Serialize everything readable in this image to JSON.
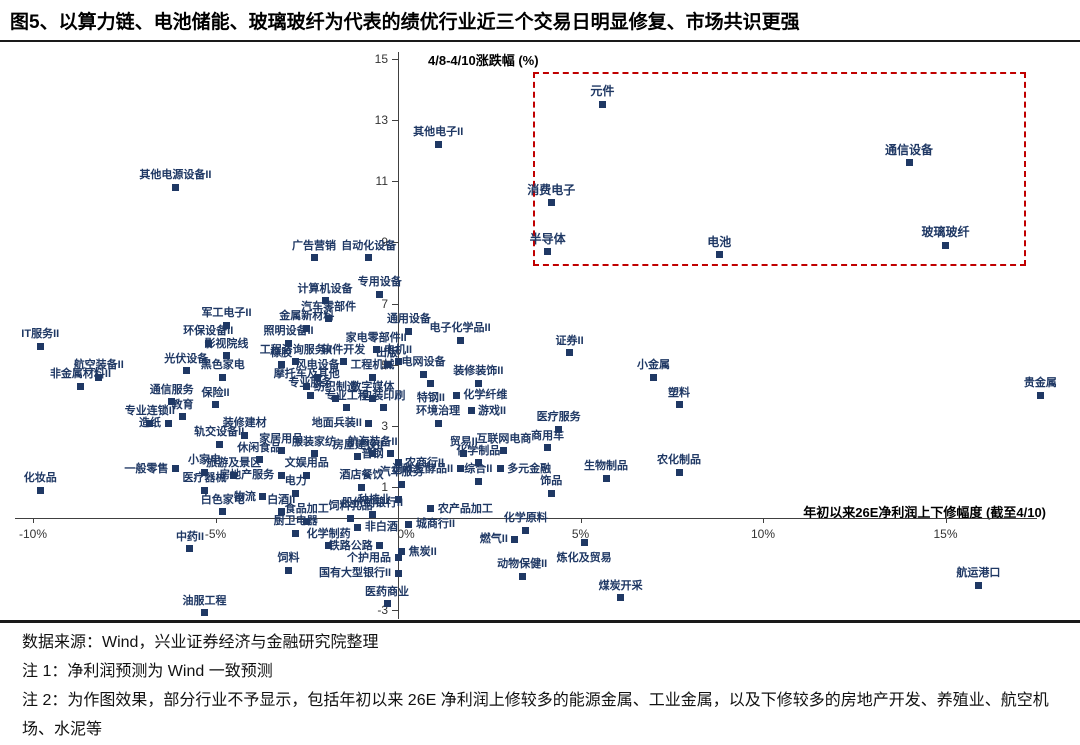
{
  "figure": {
    "title": "图5、以算力链、电池储能、玻璃玻纤为代表的绩优行业近三个交易日明显修复、市场共识更强",
    "source": "数据来源：Wind，兴业证券经济与金融研究院整理",
    "note1": "注 1：净利润预测为 Wind 一致预测",
    "note2": "注 2：为作图效果，部分行业不予显示，包括年初以来 26E 净利润上修较多的能源金属、工业金属，以及下修较多的房地产开发、养殖业、航空机场、水泥等"
  },
  "chart_data": {
    "type": "scatter",
    "title": "",
    "y_axis_title": "4/8-4/10涨跌幅 (%)",
    "x_axis_title": "年初以来26E净利润上下修幅度 (截至4/10)",
    "xlabel": "年初以来26E净利润上下修幅度(%)",
    "ylabel": "4/8-4/10涨跌幅(%)",
    "xlim": [
      -10.5,
      18.5
    ],
    "ylim": [
      -3.3,
      15.2
    ],
    "grid": false,
    "legend": "none",
    "x_ticks": [
      {
        "v": -10,
        "label": "-10%"
      },
      {
        "v": -5,
        "label": "-5%"
      },
      {
        "v": 0,
        "label": "0%"
      },
      {
        "v": 5,
        "label": "5%"
      },
      {
        "v": 10,
        "label": "10%"
      },
      {
        "v": 15,
        "label": "15%"
      }
    ],
    "y_ticks": [
      {
        "v": 15,
        "label": "15"
      },
      {
        "v": 13,
        "label": "13"
      },
      {
        "v": 11,
        "label": "11"
      },
      {
        "v": 9,
        "label": "9"
      },
      {
        "v": 7,
        "label": "7"
      },
      {
        "v": 5,
        "label": "5"
      },
      {
        "v": 3,
        "label": "3"
      },
      {
        "v": 1,
        "label": "1"
      },
      {
        "v": -3,
        "label": "-3"
      }
    ],
    "marker_color": "#1f3864",
    "label_color": "#1f3864",
    "highlight_box": {
      "color": "#c00000",
      "x_range": [
        3.7,
        17.1
      ],
      "y_range": [
        8.35,
        14.55
      ]
    },
    "points": [
      {
        "n": "元件",
        "x": 5.6,
        "y": 13.5,
        "hl": true
      },
      {
        "n": "通信设备",
        "x": 14.0,
        "y": 11.6,
        "hl": true
      },
      {
        "n": "消费电子",
        "x": 4.2,
        "y": 10.3,
        "hl": true
      },
      {
        "n": "半导体",
        "x": 4.1,
        "y": 8.7,
        "hl": true
      },
      {
        "n": "电池",
        "x": 8.8,
        "y": 8.6,
        "hl": true
      },
      {
        "n": "玻璃玻纤",
        "x": 15.0,
        "y": 8.9,
        "hl": true
      },
      {
        "n": "其他电子II",
        "x": 1.1,
        "y": 12.2
      },
      {
        "n": "其他电源设备II",
        "x": -6.1,
        "y": 10.8
      },
      {
        "n": "广告营销",
        "x": -2.3,
        "y": 8.5
      },
      {
        "n": "自动化设备",
        "x": -0.8,
        "y": 8.5
      },
      {
        "n": "计算机设备",
        "x": -2.0,
        "y": 7.1
      },
      {
        "n": "专用设备",
        "x": -0.5,
        "y": 7.3
      },
      {
        "n": "军工电子II",
        "x": -4.7,
        "y": 6.3
      },
      {
        "n": "金属新材料",
        "x": -2.5,
        "y": 6.2
      },
      {
        "n": "汽车零部件",
        "x": -1.9,
        "y": 6.5
      },
      {
        "n": "通用设备",
        "x": 0.3,
        "y": 6.1
      },
      {
        "n": "IT服务II",
        "x": -9.8,
        "y": 5.6
      },
      {
        "n": "环保设备II",
        "x": -5.2,
        "y": 5.7
      },
      {
        "n": "照明设备II",
        "x": -3.0,
        "y": 5.7
      },
      {
        "n": "影视院线",
        "x": -4.7,
        "y": 5.3
      },
      {
        "n": "电子化学品II",
        "x": 1.7,
        "y": 5.8
      },
      {
        "n": "证券II",
        "x": 4.7,
        "y": 5.4
      },
      {
        "n": "光伏设备",
        "x": -5.8,
        "y": 4.8
      },
      {
        "n": "工程咨询服务II",
        "x": -2.8,
        "y": 5.1
      },
      {
        "n": "软件开发",
        "x": -1.5,
        "y": 5.1
      },
      {
        "n": "电机II",
        "x": 0.0,
        "y": 5.1
      },
      {
        "n": "黑色家电",
        "x": -4.8,
        "y": 4.6
      },
      {
        "n": "橡胶",
        "x": -3.2,
        "y": 5.0
      },
      {
        "n": "风电设备",
        "x": -2.2,
        "y": 4.6
      },
      {
        "n": "出版",
        "x": -0.3,
        "y": 5.0
      },
      {
        "n": "摩托车及其他",
        "x": -2.5,
        "y": 4.3
      },
      {
        "n": "工程机械",
        "x": -0.7,
        "y": 4.6
      },
      {
        "n": "电网设备",
        "x": 0.7,
        "y": 4.7
      },
      {
        "n": "特钢II",
        "x": 0.9,
        "y": 4.4,
        "lp": "below"
      },
      {
        "n": "家电零部件II",
        "x": -0.6,
        "y": 5.5
      },
      {
        "n": "通信服务",
        "x": -6.2,
        "y": 3.8
      },
      {
        "n": "保险II",
        "x": -5.0,
        "y": 3.7
      },
      {
        "n": "专业服务",
        "x": -2.4,
        "y": 4.0
      },
      {
        "n": "纺织制造",
        "x": -1.7,
        "y": 3.9
      },
      {
        "n": "数字媒体",
        "x": -0.7,
        "y": 3.9
      },
      {
        "n": "装修装饰II",
        "x": 2.2,
        "y": 4.4
      },
      {
        "n": "化学纤维",
        "x": 1.6,
        "y": 4.0,
        "lp": "right"
      },
      {
        "n": "游戏II",
        "x": 2.0,
        "y": 3.5,
        "lp": "right"
      },
      {
        "n": "环境治理",
        "x": 1.1,
        "y": 3.1
      },
      {
        "n": "医疗服务",
        "x": 4.4,
        "y": 2.9
      },
      {
        "n": "小金属",
        "x": 7.0,
        "y": 4.6
      },
      {
        "n": "塑料",
        "x": 7.7,
        "y": 3.7
      },
      {
        "n": "贵金属",
        "x": 17.6,
        "y": 4.0
      },
      {
        "n": "教育",
        "x": -5.9,
        "y": 3.3
      },
      {
        "n": "专业连锁II",
        "x": -6.8,
        "y": 3.1
      },
      {
        "n": "造纸",
        "x": -6.3,
        "y": 3.1,
        "lp": "left"
      },
      {
        "n": "轨交设备II",
        "x": -4.9,
        "y": 2.4
      },
      {
        "n": "装修建材",
        "x": -4.2,
        "y": 2.7
      },
      {
        "n": "专业工程",
        "x": -1.4,
        "y": 3.6
      },
      {
        "n": "包装印刷",
        "x": -0.4,
        "y": 3.6
      },
      {
        "n": "地面兵装II",
        "x": -0.8,
        "y": 3.1,
        "lp": "left"
      },
      {
        "n": "贸易II",
        "x": 1.8,
        "y": 2.1
      },
      {
        "n": "互联网电商",
        "x": 2.9,
        "y": 2.2
      },
      {
        "n": "商用车",
        "x": 4.1,
        "y": 2.3
      },
      {
        "n": "家居用品",
        "x": -3.2,
        "y": 2.2
      },
      {
        "n": "服装家纺",
        "x": -2.3,
        "y": 2.1
      },
      {
        "n": "航海装备II",
        "x": -0.7,
        "y": 2.1
      },
      {
        "n": "休闲食品",
        "x": -3.8,
        "y": 1.9
      },
      {
        "n": "房屋建设II",
        "x": -1.1,
        "y": 2.0
      },
      {
        "n": "普钢",
        "x": -0.2,
        "y": 2.1,
        "lp": "left"
      },
      {
        "n": "农商行II",
        "x": 0.0,
        "y": 1.8,
        "lp": "right"
      },
      {
        "n": "化学制品",
        "x": 2.2,
        "y": 1.8
      },
      {
        "n": "多元金融",
        "x": 2.8,
        "y": 1.6,
        "lp": "right"
      },
      {
        "n": "调味发酵品II",
        "x": 1.7,
        "y": 1.6,
        "lp": "left"
      },
      {
        "n": "文娱用品",
        "x": -2.5,
        "y": 1.4
      },
      {
        "n": "一般零售",
        "x": -6.1,
        "y": 1.6,
        "lp": "left"
      },
      {
        "n": "旅游及景区",
        "x": -4.5,
        "y": 1.4
      },
      {
        "n": "房地产服务",
        "x": -3.2,
        "y": 1.4,
        "lp": "left"
      },
      {
        "n": "酒店餐饮",
        "x": -1.0,
        "y": 1.0
      },
      {
        "n": "汽车服务",
        "x": 0.1,
        "y": 1.1
      },
      {
        "n": "综合II",
        "x": 2.2,
        "y": 1.2
      },
      {
        "n": "医疗器械",
        "x": -5.3,
        "y": 0.9
      },
      {
        "n": "小家电",
        "x": -5.3,
        "y": 1.5
      },
      {
        "n": "物流",
        "x": -3.7,
        "y": 0.7,
        "lp": "left"
      },
      {
        "n": "电力",
        "x": -2.8,
        "y": 0.8
      },
      {
        "n": "种植业",
        "x": 0.0,
        "y": 0.6,
        "lp": "left"
      },
      {
        "n": "农产品加工",
        "x": 0.9,
        "y": 0.3,
        "lp": "right"
      },
      {
        "n": "化妆品",
        "x": -9.8,
        "y": 0.9
      },
      {
        "n": "白色家电",
        "x": -4.8,
        "y": 0.2
      },
      {
        "n": "白酒II",
        "x": -3.2,
        "y": 0.2
      },
      {
        "n": "饰品",
        "x": 4.2,
        "y": 0.8
      },
      {
        "n": "生物制品",
        "x": 5.7,
        "y": 1.3
      },
      {
        "n": "农化制品",
        "x": 7.7,
        "y": 1.5
      },
      {
        "n": "股份制银行II",
        "x": -0.7,
        "y": 0.1
      },
      {
        "n": "食品加工",
        "x": -2.5,
        "y": -0.1
      },
      {
        "n": "饲料乳品",
        "x": -1.3,
        "y": 0.0
      },
      {
        "n": "非白酒",
        "x": -1.1,
        "y": -0.3,
        "lp": "right"
      },
      {
        "n": "城商行II",
        "x": 0.3,
        "y": -0.2,
        "lp": "right"
      },
      {
        "n": "中药II",
        "x": -5.7,
        "y": -1.0
      },
      {
        "n": "厨卫电器",
        "x": -2.8,
        "y": -0.5
      },
      {
        "n": "化学制药",
        "x": -1.9,
        "y": -0.9
      },
      {
        "n": "铁路公路",
        "x": -0.5,
        "y": -0.9,
        "lp": "left"
      },
      {
        "n": "化学原料",
        "x": 3.5,
        "y": -0.4
      },
      {
        "n": "燃气II",
        "x": 3.2,
        "y": -0.7,
        "lp": "left"
      },
      {
        "n": "炼化及贸易",
        "x": 5.1,
        "y": -0.8,
        "lp": "below"
      },
      {
        "n": "焦炭II",
        "x": 0.1,
        "y": -1.1,
        "lp": "right"
      },
      {
        "n": "个护用品",
        "x": 0.0,
        "y": -1.3,
        "lp": "left"
      },
      {
        "n": "饲料",
        "x": -3.0,
        "y": -1.7
      },
      {
        "n": "国有大型银行II",
        "x": 0.0,
        "y": -1.8,
        "lp": "left"
      },
      {
        "n": "动物保健II",
        "x": 3.4,
        "y": -1.9
      },
      {
        "n": "医药商业",
        "x": -0.3,
        "y": -2.8
      },
      {
        "n": "煤炭开采",
        "x": 6.1,
        "y": -2.6
      },
      {
        "n": "油服工程",
        "x": -5.3,
        "y": -3.1
      },
      {
        "n": "航运港口",
        "x": 15.9,
        "y": -2.2
      },
      {
        "n": "非金属材料II",
        "x": -8.7,
        "y": 4.3
      },
      {
        "n": "航空装备II",
        "x": -8.2,
        "y": 4.6
      }
    ]
  }
}
